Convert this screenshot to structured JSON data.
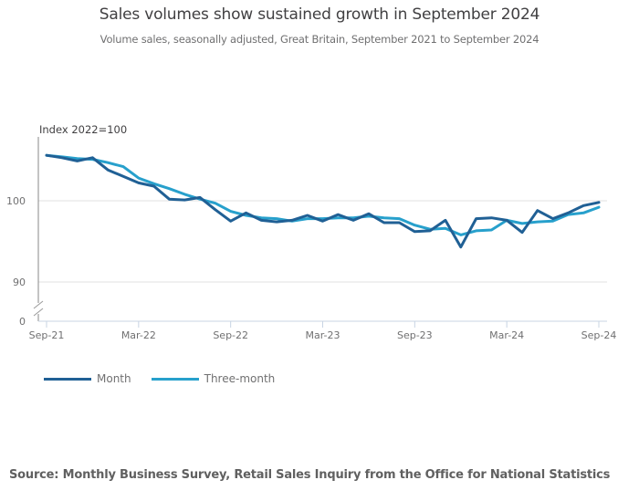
{
  "title": "Sales volumes show sustained growth in September 2024",
  "subtitle": "Volume sales, seasonally adjusted, Great Britain, September 2021 to September 2024",
  "source": "Source: Monthly Business Survey, Retail Sales Inquiry from the Office for National Statistics",
  "chart_data": {
    "type": "line",
    "title": "Sales volumes show sustained growth in September 2024",
    "subtitle": "Volume sales, seasonally adjusted, Great Britain, September 2021 to September 2024",
    "xlabel": "",
    "ylabel": "Index 2022=100",
    "ylim": [
      0,
      107
    ],
    "axis_break": true,
    "y_ticks": [
      "0",
      "90",
      "100"
    ],
    "y_tick_values": [
      0,
      90,
      100
    ],
    "x_ticks": [
      "Sep-21",
      "Mar-22",
      "Sep-22",
      "Mar-23",
      "Sep-23",
      "Mar-24",
      "Sep-24"
    ],
    "x": [
      "Sep-21",
      "Oct-21",
      "Nov-21",
      "Dec-21",
      "Jan-22",
      "Feb-22",
      "Mar-22",
      "Apr-22",
      "May-22",
      "Jun-22",
      "Jul-22",
      "Aug-22",
      "Sep-22",
      "Oct-22",
      "Nov-22",
      "Dec-22",
      "Jan-23",
      "Feb-23",
      "Mar-23",
      "Apr-23",
      "May-23",
      "Jun-23",
      "Jul-23",
      "Aug-23",
      "Sep-23",
      "Oct-23",
      "Nov-23",
      "Dec-23",
      "Jan-24",
      "Feb-24",
      "Mar-24",
      "Apr-24",
      "May-24",
      "Jun-24",
      "Jul-24",
      "Aug-24",
      "Sep-24"
    ],
    "grid": true,
    "legend_position": "bottom-left",
    "series": [
      {
        "name": "Month",
        "color": "#206095",
        "values": [
          105.6,
          105.3,
          104.9,
          105.3,
          103.8,
          103.0,
          102.2,
          101.8,
          100.2,
          100.1,
          100.4,
          98.9,
          97.5,
          98.5,
          97.6,
          97.4,
          97.6,
          98.2,
          97.5,
          98.3,
          97.6,
          98.4,
          97.3,
          97.3,
          96.2,
          96.3,
          97.6,
          94.3,
          97.8,
          97.9,
          97.6,
          96.1,
          98.8,
          97.8,
          98.5,
          99.4,
          99.8
        ]
      },
      {
        "name": "Three-month",
        "color": "#27a0cc",
        "values": [
          105.6,
          105.4,
          105.2,
          105.1,
          104.7,
          104.2,
          102.8,
          102.1,
          101.5,
          100.8,
          100.2,
          99.7,
          98.7,
          98.2,
          97.9,
          97.8,
          97.5,
          97.8,
          97.8,
          97.9,
          97.9,
          98.1,
          97.9,
          97.8,
          97.0,
          96.5,
          96.6,
          95.8,
          96.3,
          96.4,
          97.6,
          97.2,
          97.4,
          97.5,
          98.3,
          98.5,
          99.2
        ]
      }
    ]
  }
}
